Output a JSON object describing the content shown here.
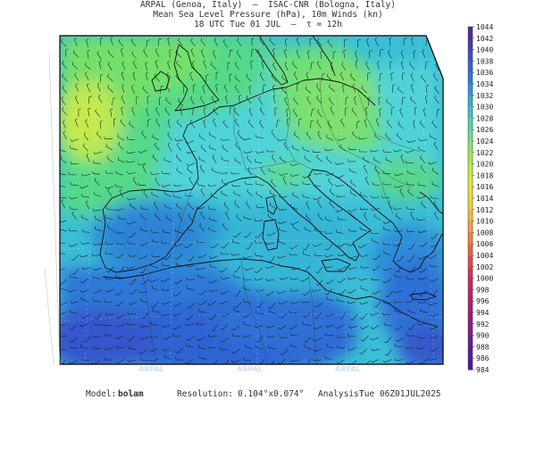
{
  "header": {
    "line1": "ARPAL (Genoa, Italy)  —  ISAC-CNR (Bologna, Italy)",
    "line2": "Mean Sea Level Pressure (hPa), 10m Winds (kn)",
    "line3": "18 UTC Tue 01 JUL  —  τ = 12h"
  },
  "colorbar": {
    "levels": [
      "1044",
      "1042",
      "1040",
      "1038",
      "1036",
      "1034",
      "1032",
      "1030",
      "1028",
      "1026",
      "1024",
      "1022",
      "1020",
      "1018",
      "1016",
      "1014",
      "1012",
      "1010",
      "1008",
      "1006",
      "1004",
      "1002",
      "1000",
      "998",
      "996",
      "994",
      "992",
      "990",
      "988",
      "986",
      "984"
    ],
    "colors": [
      "#5a2b8c",
      "#4a3aa8",
      "#3e4fc2",
      "#3566d2",
      "#2f7fd8",
      "#2c98d8",
      "#31b0d2",
      "#3cc5c3",
      "#4fd5aa",
      "#6ddf87",
      "#8ee46a",
      "#a9e84f",
      "#c3ea3e",
      "#d9ea39",
      "#e8e23a",
      "#efd03c",
      "#f1b93e",
      "#f09e40",
      "#ec8242",
      "#e66644",
      "#de4d48",
      "#d3384f",
      "#c52a5a",
      "#b82468",
      "#a91f76",
      "#981c83",
      "#861b8e",
      "#731b97",
      "#5e1c9c",
      "#4a1c9e"
    ]
  },
  "watermark": "ARPAL",
  "footer": {
    "model_label": "Model:",
    "model_value": "bolam",
    "resolution_label": "Resolution:",
    "resolution_value": "0.104°x0.074°",
    "analysis_label": "Analysis:",
    "analysis_value": "Tue 06Z01JUL2025"
  }
}
